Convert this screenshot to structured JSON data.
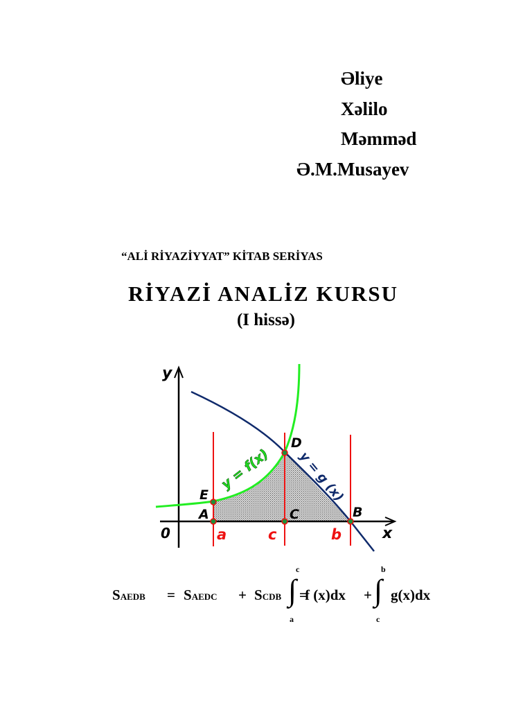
{
  "authors": [
    "Əliye",
    "Xəlilo",
    "Məmməd",
    "Ə.M.Musayev"
  ],
  "series": "“ALİ RİYAZİYYAT” KİTAB SERİYAS",
  "title": "RİYAZİ ANALİZ KURSU",
  "subtitle": "(I hissə)",
  "diagram": {
    "axis_y": "y",
    "axis_x": "x",
    "origin": "0",
    "points": {
      "A": "A",
      "B": "B",
      "C": "C",
      "D": "D",
      "E": "E"
    },
    "ticks": {
      "a": "a",
      "c": "c",
      "b": "b"
    },
    "curve_f": "y = f(x)",
    "curve_g": "y = g (x)",
    "colors": {
      "f": "#22ee22",
      "g": "#0f2a6b",
      "verticals": "#ee1111",
      "shade": "#999999",
      "points": "#1f8f3a"
    }
  },
  "formula": {
    "s1": "S",
    "s1_sub": "AEDB",
    "eq1": "=",
    "s2": "S",
    "s2_sub": "AEDC",
    "plus1": "+",
    "s3": "S",
    "s3_sub": "CDB",
    "eq2": "=",
    "int1_upper": "c",
    "int1_lower": "a",
    "int1_body": "f (x)dx",
    "plus2": "+",
    "int2_upper": "b",
    "int2_lower": "c",
    "int2_body": "g(x)dx",
    "integral_sign": "∫"
  }
}
